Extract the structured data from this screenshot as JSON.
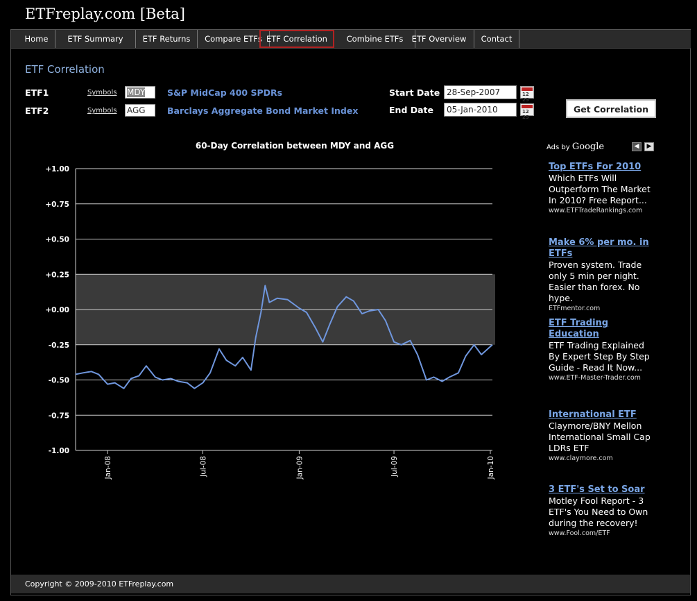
{
  "site": {
    "title": "ETFreplay.com [Beta]"
  },
  "nav": [
    {
      "label": "Home"
    },
    {
      "label": "ETF Summary"
    },
    {
      "label": "ETF Returns"
    },
    {
      "label": "Compare ETFs"
    },
    {
      "label": "ETF Correlation"
    },
    {
      "label": "Combine ETFs"
    },
    {
      "label": "ETF Overview"
    },
    {
      "label": "Contact"
    }
  ],
  "page": {
    "heading": "ETF Correlation"
  },
  "form": {
    "etf1": {
      "label": "ETF1",
      "symbols_link": "Symbols",
      "symbol": "MDY",
      "name": "S&P MidCap 400 SPDRs"
    },
    "etf2": {
      "label": "ETF2",
      "symbols_link": "Symbols",
      "symbol": "AGG",
      "name": "Barclays Aggregate Bond Market Index"
    },
    "start_date": {
      "label": "Start Date",
      "value": "28-Sep-2007"
    },
    "end_date": {
      "label": "End Date",
      "value": "05-Jan-2010"
    },
    "button": "Get Correlation"
  },
  "chart_data": {
    "type": "line",
    "title": "60-Day Correlation between MDY and AGG",
    "ylim": [
      -1,
      1
    ],
    "y_ticks": [
      "+1.00",
      "+0.75",
      "+0.50",
      "+0.25",
      "+0.00",
      "-0.25",
      "-0.50",
      "-0.75",
      "-1.00"
    ],
    "y_tick_values": [
      1,
      0.75,
      0.5,
      0.25,
      0,
      -0.25,
      -0.5,
      -0.75,
      -1
    ],
    "x_ticks": [
      "Jan-08",
      "Jul-08",
      "Jan-09",
      "Jul-09",
      "Jan-10"
    ],
    "x_tick_dates": [
      "2008-01-01",
      "2008-07-01",
      "2009-01-01",
      "2009-07-01",
      "2010-01-01"
    ],
    "xlim": [
      "2007-11-01",
      "2010-01-05"
    ],
    "shaded_band": [
      -0.25,
      0.25
    ],
    "grid": true,
    "line_color": "#6f96dd",
    "series": [
      {
        "points": [
          [
            "2007-11-01",
            -0.46
          ],
          [
            "2007-11-15",
            -0.45
          ],
          [
            "2007-12-01",
            -0.44
          ],
          [
            "2007-12-15",
            -0.46
          ],
          [
            "2008-01-01",
            -0.53
          ],
          [
            "2008-01-15",
            -0.52
          ],
          [
            "2008-02-01",
            -0.56
          ],
          [
            "2008-02-15",
            -0.49
          ],
          [
            "2008-03-01",
            -0.47
          ],
          [
            "2008-03-15",
            -0.4
          ],
          [
            "2008-04-01",
            -0.48
          ],
          [
            "2008-04-15",
            -0.5
          ],
          [
            "2008-05-01",
            -0.49
          ],
          [
            "2008-05-15",
            -0.51
          ],
          [
            "2008-06-01",
            -0.52
          ],
          [
            "2008-06-15",
            -0.56
          ],
          [
            "2008-07-01",
            -0.52
          ],
          [
            "2008-07-15",
            -0.45
          ],
          [
            "2008-08-01",
            -0.28
          ],
          [
            "2008-08-15",
            -0.36
          ],
          [
            "2008-09-01",
            -0.4
          ],
          [
            "2008-09-15",
            -0.34
          ],
          [
            "2008-10-01",
            -0.43
          ],
          [
            "2008-10-10",
            -0.2
          ],
          [
            "2008-10-20",
            -0.02
          ],
          [
            "2008-10-28",
            0.17
          ],
          [
            "2008-11-05",
            0.05
          ],
          [
            "2008-11-20",
            0.08
          ],
          [
            "2008-12-10",
            0.07
          ],
          [
            "2009-01-01",
            0.01
          ],
          [
            "2009-01-15",
            -0.02
          ],
          [
            "2009-02-01",
            -0.13
          ],
          [
            "2009-02-15",
            -0.23
          ],
          [
            "2009-03-01",
            -0.1
          ],
          [
            "2009-03-15",
            0.02
          ],
          [
            "2009-04-01",
            0.09
          ],
          [
            "2009-04-15",
            0.06
          ],
          [
            "2009-05-01",
            -0.03
          ],
          [
            "2009-05-15",
            -0.01
          ],
          [
            "2009-06-01",
            0.0
          ],
          [
            "2009-06-15",
            -0.08
          ],
          [
            "2009-07-01",
            -0.23
          ],
          [
            "2009-07-15",
            -0.25
          ],
          [
            "2009-08-01",
            -0.22
          ],
          [
            "2009-08-15",
            -0.32
          ],
          [
            "2009-09-01",
            -0.5
          ],
          [
            "2009-09-15",
            -0.48
          ],
          [
            "2009-10-01",
            -0.51
          ],
          [
            "2009-10-15",
            -0.48
          ],
          [
            "2009-11-01",
            -0.45
          ],
          [
            "2009-11-15",
            -0.33
          ],
          [
            "2009-12-01",
            -0.25
          ],
          [
            "2009-12-15",
            -0.32
          ],
          [
            "2010-01-05",
            -0.25
          ]
        ]
      }
    ]
  },
  "ads": {
    "label": "Ads by",
    "brand": "Google",
    "items": [
      {
        "title": "Top ETFs For 2010",
        "body": "Which ETFs Will Outperform The Market In 2010? Free Report...",
        "url": "www.ETFTradeRankings.com"
      },
      {
        "title": "Make 6% per mo. in ETFs",
        "body": "Proven system. Trade only 5 min per night. Easier than forex. No hype.",
        "url": "ETFmentor.com"
      },
      {
        "title": "ETF Trading Education",
        "body": "ETF Trading Explained By Expert Step By Step Guide - Read It Now...",
        "url": "www.ETF-Master-Trader.com"
      },
      {
        "title": "International ETF",
        "body": "Claymore/BNY Mellon International Small Cap LDRs ETF",
        "url": "www.claymore.com"
      },
      {
        "title": "3 ETF's Set to Soar",
        "body": "Motley Fool Report - 3 ETF's You Need to Own during the recovery!",
        "url": "www.Fool.com/ETF"
      }
    ]
  },
  "footer": {
    "copyright": "Copyright © 2009-2010 ETFreplay.com"
  }
}
